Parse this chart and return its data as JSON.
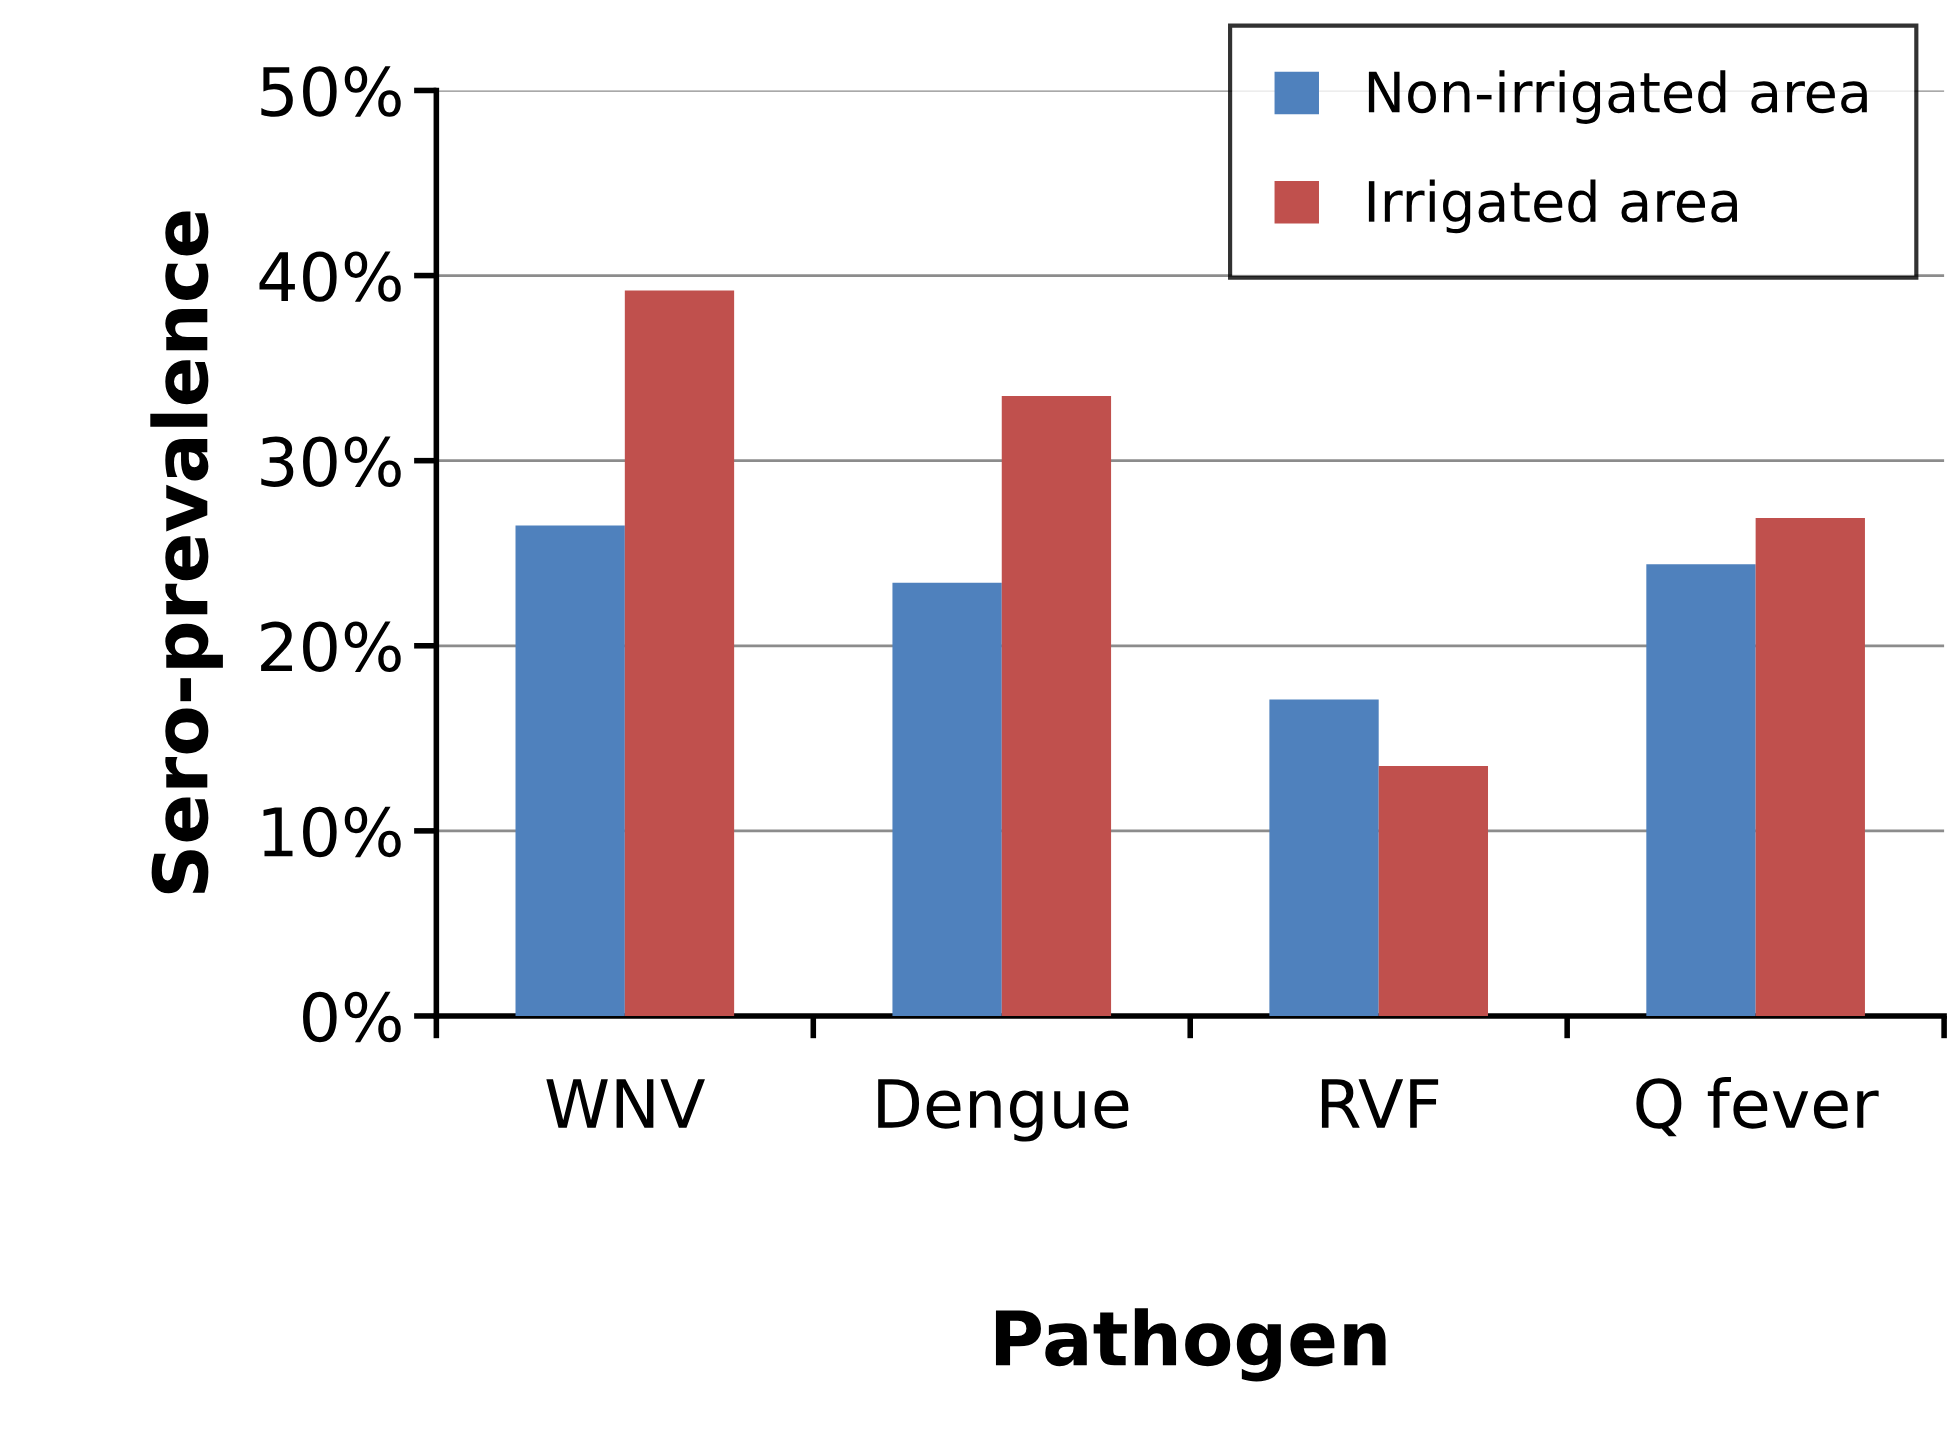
{
  "chart_data": {
    "type": "bar",
    "xlabel": "Pathogen",
    "ylabel": "Sero-prevalence",
    "categories": [
      "WNV",
      "Dengue",
      "RVF",
      "Q fever"
    ],
    "series": [
      {
        "name": "Non-irrigated area",
        "color": "#4f81bd",
        "values": [
          26.5,
          23.4,
          17.1,
          24.4
        ]
      },
      {
        "name": "Irrigated area",
        "color": "#c0504d",
        "values": [
          39.2,
          33.5,
          13.5,
          26.9
        ]
      }
    ],
    "ylim": [
      0,
      50
    ],
    "yticks": [
      {
        "value": 0,
        "label": "0%"
      },
      {
        "value": 10,
        "label": "10%"
      },
      {
        "value": 20,
        "label": "20%"
      },
      {
        "value": 30,
        "label": "30%"
      },
      {
        "value": 40,
        "label": "40%"
      },
      {
        "value": 50,
        "label": "50%"
      }
    ],
    "grid": "y",
    "legend": "top right"
  }
}
